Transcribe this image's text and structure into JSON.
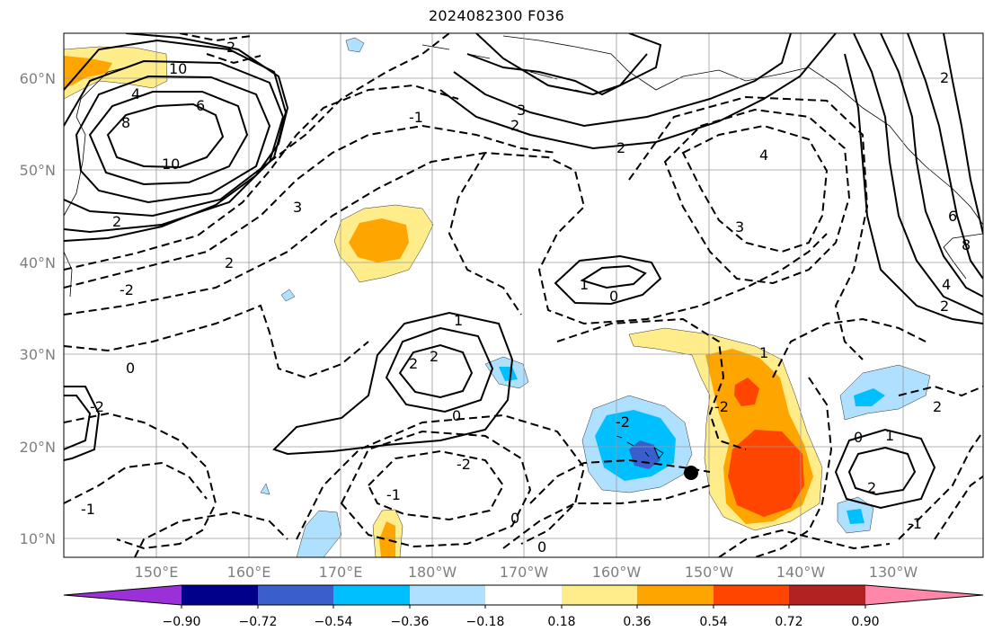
{
  "title": "2024082300 F036",
  "lat_labels": [
    "10°N",
    "20°N",
    "30°N",
    "40°N",
    "50°N",
    "60°N"
  ],
  "lon_labels": [
    "150°E",
    "160°E",
    "170°E",
    "180°W",
    "170°W",
    "160°W",
    "150°W",
    "140°W",
    "130°W"
  ],
  "colorbar": {
    "ticks": [
      "−0.90",
      "−0.72",
      "−0.54",
      "−0.36",
      "−0.18",
      "0.18",
      "0.36",
      "0.54",
      "0.72",
      "0.90"
    ],
    "colors": [
      "#9b30d9",
      "#00008b",
      "#3a5fcd",
      "#00bfff",
      "#b0e0ff",
      "#ffffff",
      "#ffec8b",
      "#ffa500",
      "#ff4500",
      "#b22222",
      "#ff88aa"
    ]
  },
  "contour_labels": [
    "2",
    "10",
    "4",
    "8",
    "6",
    "10",
    "3",
    "2",
    "-2",
    "2",
    "0",
    "-2",
    "1",
    "2",
    "2",
    "0",
    "1",
    "0",
    "3",
    "4",
    "3",
    "2",
    "6",
    "2",
    "4",
    "8",
    "2",
    "-1",
    "-2",
    "2",
    "0",
    "-1",
    "-2",
    "1",
    "-2",
    "2",
    "0",
    "1",
    "2",
    "-1",
    "0",
    "-1"
  ]
}
